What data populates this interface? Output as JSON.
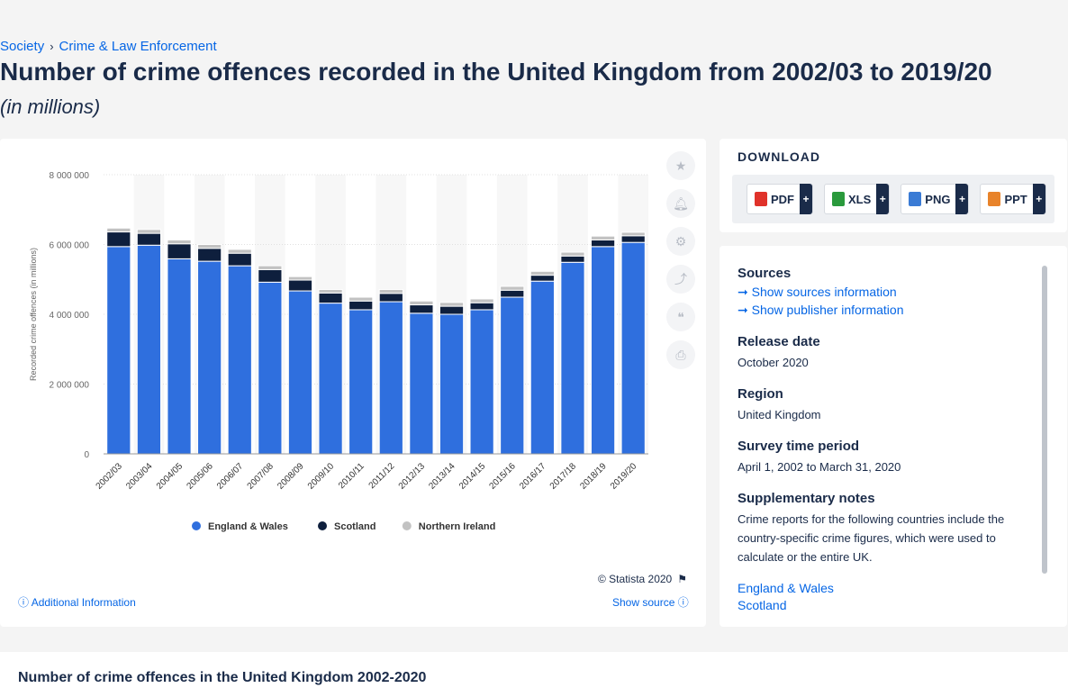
{
  "breadcrumb": {
    "item1": "Society",
    "item2": "Crime & Law Enforcement",
    "sep": "›"
  },
  "title": "Number of crime offences recorded in the United Kingdom from 2002/03 to 2019/20",
  "subtitle": "(in millions)",
  "tools": [
    "star-icon",
    "bell-icon",
    "gear-icon",
    "share-icon",
    "quote-icon",
    "print-icon"
  ],
  "credit": "© Statista 2020",
  "additional_info": "Additional Information",
  "show_source": "Show source",
  "download": {
    "title": "DOWNLOAD",
    "buttons": [
      {
        "label": "PDF",
        "color": "#e0322a"
      },
      {
        "label": "XLS",
        "color": "#2a9a3c"
      },
      {
        "label": "PNG",
        "color": "#3a7bd5"
      },
      {
        "label": "PPT",
        "color": "#e8832a"
      }
    ],
    "plus": "+"
  },
  "info": {
    "sources_h": "Sources",
    "sources_link1": "Show sources information",
    "sources_link2": "Show publisher information",
    "release_h": "Release date",
    "release_v": "October 2020",
    "region_h": "Region",
    "region_v": "United Kingdom",
    "survey_h": "Survey time period",
    "survey_v": "April 1, 2002 to March 31, 2020",
    "supp_h": "Supplementary notes",
    "supp_v": "Crime reports for the following countries include the country-specific crime figures, which were used to calculate or the entire UK.",
    "link_ew": "England & Wales",
    "link_sc": "Scotland"
  },
  "bottom_title": "Number of crime offences in the United Kingdom 2002-2020",
  "chart_data": {
    "type": "bar",
    "stacked": true,
    "categories": [
      "2002/03",
      "2003/04",
      "2004/05",
      "2005/06",
      "2006/07",
      "2007/08",
      "2008/09",
      "2009/10",
      "2010/11",
      "2011/12",
      "2012/13",
      "2013/14",
      "2014/15",
      "2015/16",
      "2016/17",
      "2017/18",
      "2018/19",
      "2019/20"
    ],
    "series": [
      {
        "name": "England & Wales",
        "color": "#2f6fde",
        "values": [
          5940000,
          5980000,
          5590000,
          5520000,
          5390000,
          4920000,
          4670000,
          4320000,
          4130000,
          4360000,
          4030000,
          4000000,
          4130000,
          4490000,
          4950000,
          5490000,
          5940000,
          6060000
        ]
      },
      {
        "name": "Scotland",
        "color": "#0e1f3d",
        "values": [
          420000,
          340000,
          430000,
          370000,
          360000,
          360000,
          310000,
          290000,
          250000,
          240000,
          240000,
          230000,
          200000,
          200000,
          170000,
          180000,
          190000,
          190000
        ]
      },
      {
        "name": "Northern Ireland",
        "color": "#c2c2c2",
        "values": [
          110000,
          110000,
          110000,
          110000,
          110000,
          110000,
          100000,
          100000,
          110000,
          110000,
          110000,
          110000,
          110000,
          110000,
          110000,
          110000,
          110000,
          100000
        ]
      }
    ],
    "ylabel": "Recorded crime offences (in millions)",
    "yticks": [
      "0",
      "2 000 000",
      "4 000 000",
      "6 000 000",
      "8 000 000"
    ],
    "ytick_values": [
      0,
      2000000,
      4000000,
      6000000,
      8000000
    ],
    "ylim": [
      0,
      8000000
    ],
    "grid": true,
    "legend": "bottom"
  }
}
